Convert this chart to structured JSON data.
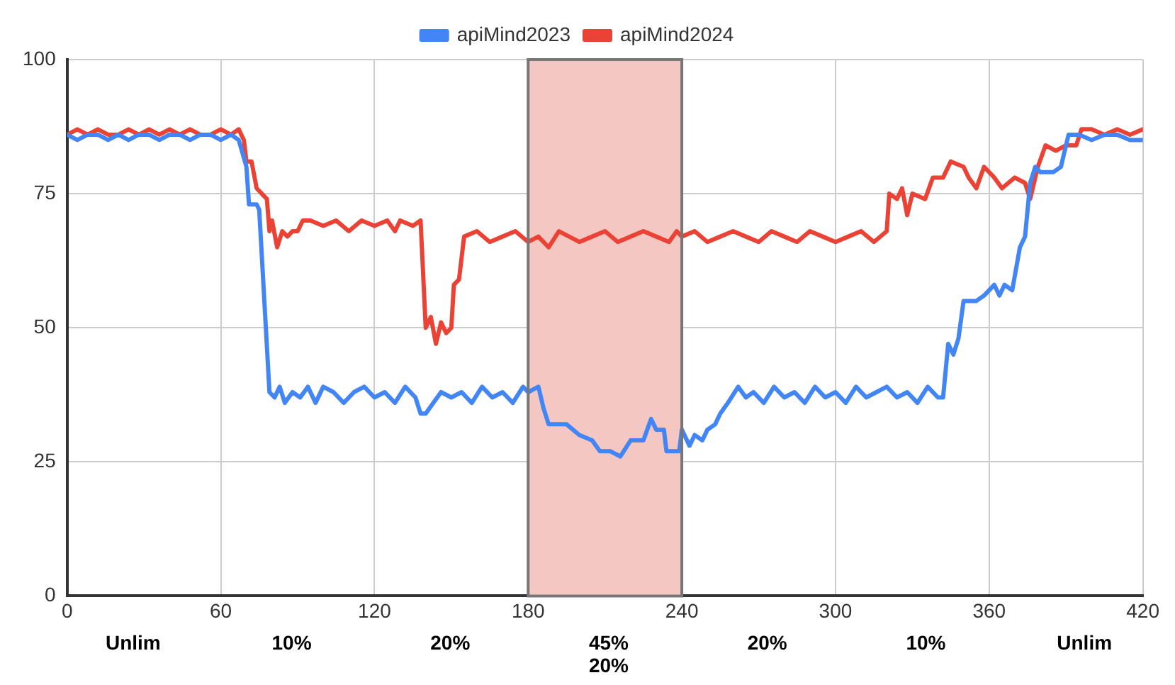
{
  "chart_data": {
    "type": "line",
    "xlim": [
      0,
      420
    ],
    "xticks": [
      0,
      60,
      120,
      180,
      240,
      300,
      360,
      420
    ],
    "ylim": [
      0,
      100
    ],
    "yticks": [
      0,
      25,
      50,
      75,
      100
    ],
    "grid": true,
    "legend": "top",
    "marker": "none",
    "line_style": "solid",
    "bands": [
      {
        "axis": "x",
        "from": 180,
        "to": 240,
        "color": "#f4c7c3"
      }
    ],
    "annotations": [
      "Unlim",
      "10%",
      "20%",
      "45%\n20%",
      "20%",
      "10%",
      "Unlim"
    ],
    "series": [
      {
        "name": "apiMind2023",
        "color": "#4285f4",
        "x": [
          0,
          4,
          8,
          12,
          16,
          20,
          24,
          28,
          32,
          36,
          40,
          44,
          48,
          52,
          56,
          60,
          64,
          67,
          70,
          71,
          74,
          75,
          77,
          79,
          81,
          83,
          85,
          88,
          91,
          94,
          97,
          100,
          104,
          108,
          112,
          116,
          120,
          124,
          128,
          132,
          136,
          138,
          140,
          143,
          146,
          150,
          154,
          158,
          162,
          166,
          170,
          174,
          178,
          180,
          184,
          186,
          188,
          195,
          200,
          205,
          208,
          212,
          216,
          220,
          225,
          228,
          230,
          233,
          234,
          239,
          240,
          243,
          245,
          248,
          250,
          253,
          255,
          258,
          262,
          265,
          268,
          272,
          276,
          280,
          284,
          288,
          292,
          296,
          300,
          304,
          308,
          312,
          316,
          320,
          324,
          328,
          332,
          336,
          340,
          342,
          344,
          346,
          348,
          350,
          355,
          358,
          362,
          364,
          366,
          369,
          372,
          374,
          376,
          378,
          380,
          385,
          388,
          391,
          395,
          400,
          405,
          410,
          415,
          420
        ],
        "values": [
          86,
          85,
          86,
          86,
          85,
          86,
          85,
          86,
          86,
          85,
          86,
          86,
          85,
          86,
          86,
          85,
          86,
          85,
          80,
          73,
          73,
          72,
          55,
          38,
          37,
          39,
          36,
          38,
          37,
          39,
          36,
          39,
          38,
          36,
          38,
          39,
          37,
          38,
          36,
          39,
          37,
          34,
          34,
          36,
          38,
          37,
          38,
          36,
          39,
          37,
          38,
          36,
          39,
          38,
          39,
          35,
          32,
          32,
          30,
          29,
          27,
          27,
          26,
          29,
          29,
          33,
          31,
          31,
          27,
          27,
          31,
          28,
          30,
          29,
          31,
          32,
          34,
          36,
          39,
          37,
          38,
          36,
          39,
          37,
          38,
          36,
          39,
          37,
          38,
          36,
          39,
          37,
          38,
          39,
          37,
          38,
          36,
          39,
          37,
          37,
          47,
          45,
          48,
          55,
          55,
          56,
          58,
          56,
          58,
          57,
          65,
          67,
          77,
          80,
          79,
          79,
          80,
          86,
          86,
          85,
          86,
          86,
          85,
          85
        ]
      },
      {
        "name": "apiMind2024",
        "color": "#ea4335",
        "x": [
          0,
          4,
          8,
          12,
          16,
          20,
          24,
          28,
          32,
          36,
          40,
          44,
          48,
          52,
          56,
          60,
          64,
          67,
          69,
          70,
          72,
          74,
          76,
          78,
          79,
          80,
          82,
          84,
          86,
          88,
          90,
          92,
          95,
          100,
          105,
          110,
          115,
          120,
          125,
          128,
          130,
          135,
          138,
          140,
          142,
          144,
          146,
          148,
          150,
          151,
          153,
          155,
          160,
          165,
          170,
          175,
          180,
          184,
          188,
          192,
          196,
          200,
          205,
          210,
          215,
          220,
          225,
          230,
          235,
          238,
          240,
          245,
          250,
          255,
          260,
          265,
          270,
          275,
          280,
          285,
          290,
          295,
          300,
          305,
          310,
          315,
          320,
          321,
          324,
          326,
          328,
          330,
          335,
          338,
          342,
          345,
          350,
          352,
          355,
          358,
          362,
          365,
          370,
          374,
          376,
          379,
          382,
          386,
          390,
          394,
          396,
          400,
          405,
          410,
          415,
          420
        ],
        "values": [
          86,
          87,
          86,
          87,
          86,
          86,
          87,
          86,
          87,
          86,
          87,
          86,
          87,
          86,
          86,
          87,
          86,
          87,
          85,
          81,
          81,
          76,
          75,
          74,
          68,
          70,
          65,
          68,
          67,
          68,
          68,
          70,
          70,
          69,
          70,
          68,
          70,
          69,
          70,
          68,
          70,
          69,
          70,
          50,
          52,
          47,
          51,
          49,
          50,
          58,
          59,
          67,
          68,
          66,
          67,
          68,
          66,
          67,
          65,
          68,
          67,
          66,
          67,
          68,
          66,
          67,
          68,
          67,
          66,
          68,
          67,
          68,
          66,
          67,
          68,
          67,
          66,
          68,
          67,
          66,
          68,
          67,
          66,
          67,
          68,
          66,
          68,
          75,
          74,
          76,
          71,
          75,
          74,
          78,
          78,
          81,
          80,
          78,
          76,
          80,
          78,
          76,
          78,
          77,
          74,
          80,
          84,
          83,
          84,
          84,
          87,
          87,
          86,
          87,
          86,
          87
        ]
      }
    ]
  }
}
